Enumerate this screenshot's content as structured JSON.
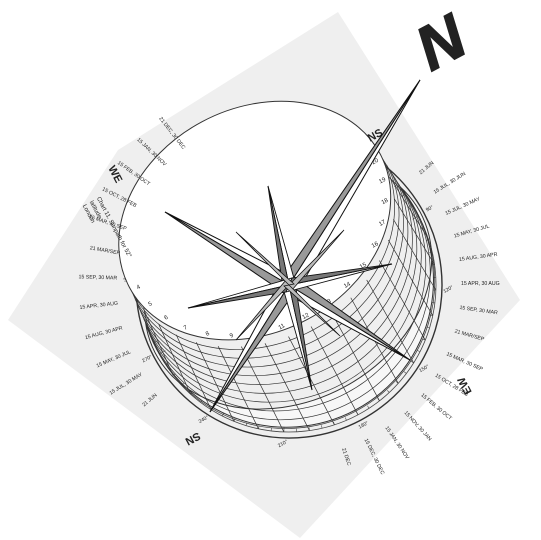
{
  "north_arrow": {
    "label": "N"
  },
  "compass_labels": {
    "top": "NS",
    "bottom": "SN",
    "left": "WE",
    "right": "EW"
  },
  "chart_caption": [
    "Chart 11. Sunpath for 52°",
    "latitude",
    "London"
  ],
  "date_labels_right": [
    "21 JUN",
    "15 JUL, 30 JUN",
    "15 JUL, 30 MAY",
    "15 MAY, 30 JUL",
    "15 AUG, 30 APR",
    "15 APR, 30 AUG",
    "15 SEP, 30 MAR",
    "21 MAR/SEP",
    "15 MAR, 30 SEP",
    "15 OCT, 28 FEB",
    "15 FEB, 30 OCT",
    "15 NOV, 30 JAN",
    "15 JAN, 30 NOV",
    "15 DEC, 30 DEC",
    "21 DEC"
  ],
  "date_labels_left": [
    "21 DEC, 30 DEC",
    "15 JAN, 30 NOV",
    "15 FEB, 30 OCT",
    "15 OCT, 28 FEB",
    "15 MAR, 30 SEP",
    "21 MAR/SEP",
    "15 SEP, 30 MAR",
    "15 APR, 30 AUG",
    "15 AUG, 30 APR",
    "15 MAY, 30 JUL",
    "15 JUL, 30 MAY",
    "21 JUN"
  ],
  "hour_labels": [
    "4",
    "5",
    "6",
    "7",
    "8",
    "9",
    "10",
    "11",
    "12",
    "13",
    "14",
    "15",
    "16",
    "17",
    "18",
    "19",
    "20"
  ],
  "azimuth_labels": [
    "0°",
    "30°",
    "60°",
    "90°",
    "120°",
    "150°",
    "180°",
    "210°",
    "240°",
    "270°",
    "300°",
    "330°"
  ]
}
